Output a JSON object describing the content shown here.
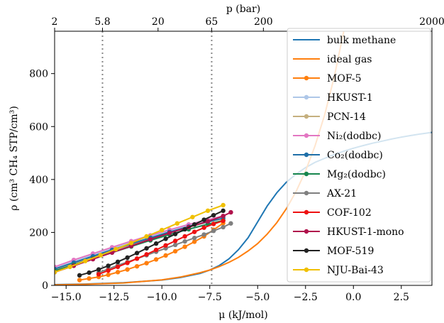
{
  "chart_data": {
    "type": "line",
    "xlabel": "μ (kJ/mol)",
    "ylabel": "ρ (cm³ CH₄ STP/cm³)",
    "top_xlabel": "p (bar)",
    "xlim": [
      -15.6,
      4.1
    ],
    "ylim": [
      0,
      960
    ],
    "xticks": [
      -15.0,
      -12.5,
      -10.0,
      -7.5,
      -5.0,
      -2.5,
      0.0,
      2.5
    ],
    "xtick_labels": [
      "−15.0",
      "−12.5",
      "−10.0",
      "−7.5",
      "−5.0",
      "−2.5",
      "0.0",
      "2.5"
    ],
    "yticks": [
      0,
      200,
      400,
      600,
      800
    ],
    "ytick_labels": [
      "0",
      "200",
      "400",
      "600",
      "800"
    ],
    "top_ticks": [
      {
        "label": "2",
        "mu": -15.6
      },
      {
        "label": "5.8",
        "mu": -13.1
      },
      {
        "label": "20",
        "mu": -10.2
      },
      {
        "label": "65",
        "mu": -7.4
      },
      {
        "label": "200",
        "mu": -4.7
      },
      {
        "label": "2000",
        "mu": 4.1
      }
    ],
    "vlines": [
      -13.1,
      -7.4
    ],
    "grid": false,
    "legend_position": "right",
    "series": [
      {
        "name": "bulk methane",
        "color": "#1f77b4",
        "marker": false,
        "x": [
          -15.6,
          -14,
          -12,
          -10,
          -9,
          -8,
          -7.5,
          -7,
          -6.5,
          -6,
          -5.5,
          -5,
          -4.5,
          -4,
          -3.5,
          -3,
          -2.5,
          -2,
          -1.5,
          -1,
          -0.5,
          0,
          0.5,
          1,
          1.5,
          2,
          2.5,
          3,
          3.5,
          4.1
        ],
        "y": [
          3,
          5,
          10,
          20,
          30,
          45,
          58,
          75,
          100,
          135,
          180,
          240,
          300,
          350,
          390,
          420,
          445,
          465,
          480,
          494,
          507,
          518,
          528,
          537,
          545,
          553,
          560,
          566,
          572,
          578
        ]
      },
      {
        "name": "ideal gas",
        "color": "#ff7f0e",
        "marker": false,
        "x": [
          -15.6,
          -14,
          -12,
          -10,
          -9,
          -8,
          -7.5,
          -7,
          -6.5,
          -6,
          -5.5,
          -5,
          -4.5,
          -4,
          -3.5,
          -3,
          -2.5,
          -2,
          -1.5,
          -1,
          -0.5,
          0
        ],
        "y": [
          2,
          4,
          9,
          21,
          32,
          48,
          58,
          71,
          87,
          106,
          130,
          158,
          194,
          237,
          290,
          354,
          432,
          528,
          645,
          788,
          962,
          1175
        ]
      },
      {
        "name": "MOF-5",
        "color": "#ff7f0e",
        "marker": true,
        "x": [
          -14.3,
          -13.8,
          -13.3,
          -12.8,
          -12.3,
          -11.8,
          -11.3,
          -10.8,
          -10.3,
          -9.8,
          -9.3,
          -8.8,
          -8.3,
          -7.8,
          -7.3,
          -6.8
        ],
        "y": [
          20,
          26,
          32,
          40,
          50,
          60,
          72,
          84,
          98,
          113,
          129,
          146,
          165,
          185,
          210,
          235
        ]
      },
      {
        "name": "HKUST-1",
        "color": "#aec7e8",
        "marker": true,
        "x": [
          -15.6,
          -14.6,
          -13.6,
          -12.6,
          -11.6,
          -10.6,
          -9.6,
          -8.6,
          -7.6,
          -6.8
        ],
        "y": [
          65,
          90,
          115,
          138,
          162,
          186,
          208,
          228,
          246,
          260
        ]
      },
      {
        "name": "PCN-14",
        "color": "#c5b07f",
        "marker": true,
        "x": [
          -15.6,
          -14.6,
          -13.6,
          -12.6,
          -11.6,
          -10.6,
          -9.6,
          -8.6,
          -7.6,
          -6.8
        ],
        "y": [
          60,
          83,
          106,
          130,
          154,
          178,
          201,
          221,
          239,
          252
        ]
      },
      {
        "name": "Ni₂(dodbc)",
        "color": "#e377c2",
        "marker": true,
        "x": [
          -15.6,
          -14.6,
          -13.6,
          -12.6,
          -11.6,
          -10.6,
          -9.6,
          -8.6,
          -7.6,
          -6.8
        ],
        "y": [
          70,
          96,
          120,
          144,
          167,
          189,
          210,
          230,
          248,
          262
        ]
      },
      {
        "name": "Co₂(dodbc)",
        "color": "#1f6fa8",
        "marker": true,
        "x": [
          -15.6,
          -14.6,
          -13.6,
          -12.6,
          -11.6,
          -10.6,
          -9.6,
          -8.6,
          -7.6,
          -6.8
        ],
        "y": [
          62,
          86,
          110,
          134,
          157,
          180,
          202,
          222,
          240,
          254
        ]
      },
      {
        "name": "Mg₂(dodbc)",
        "color": "#17864e",
        "marker": true,
        "x": [
          -15.6,
          -14.6,
          -13.6,
          -12.6,
          -11.6,
          -10.6,
          -9.6,
          -8.6,
          -7.6,
          -6.8
        ],
        "y": [
          55,
          78,
          101,
          124,
          147,
          170,
          192,
          212,
          231,
          245
        ]
      },
      {
        "name": "AX-21",
        "color": "#7f7f7f",
        "marker": true,
        "x": [
          -13.3,
          -12.8,
          -12.3,
          -11.8,
          -11.3,
          -10.8,
          -10.3,
          -9.8,
          -9.3,
          -8.8,
          -8.3,
          -7.8,
          -7.3,
          -6.8,
          -6.4
        ],
        "y": [
          48,
          62,
          76,
          88,
          101,
          114,
          127,
          140,
          153,
          166,
          179,
          192,
          206,
          220,
          234
        ]
      },
      {
        "name": "COF-102",
        "color": "#ee1111",
        "marker": true,
        "x": [
          -13.3,
          -12.8,
          -12.3,
          -11.8,
          -11.3,
          -10.8,
          -10.3,
          -9.8,
          -9.3,
          -8.8,
          -8.3,
          -7.8,
          -7.3,
          -6.8
        ],
        "y": [
          42,
          56,
          70,
          85,
          101,
          117,
          134,
          151,
          168,
          185,
          202,
          218,
          232,
          244
        ]
      },
      {
        "name": "HKUST-1-mono",
        "color": "#b0124c",
        "marker": true,
        "x": [
          -15.6,
          -14.6,
          -13.6,
          -12.6,
          -11.6,
          -10.6,
          -9.6,
          -8.6,
          -7.6,
          -6.8,
          -6.4
        ],
        "y": [
          50,
          74,
          99,
          124,
          149,
          174,
          198,
          220,
          242,
          262,
          276
        ]
      },
      {
        "name": "MOF-519",
        "color": "#222222",
        "marker": true,
        "x": [
          -14.3,
          -13.8,
          -13.3,
          -12.8,
          -12.3,
          -11.8,
          -11.3,
          -10.8,
          -10.3,
          -9.8,
          -9.3,
          -8.8,
          -8.3,
          -7.8,
          -7.3,
          -6.8
        ],
        "y": [
          38,
          48,
          60,
          74,
          89,
          105,
          122,
          140,
          158,
          176,
          194,
          212,
          230,
          248,
          265,
          282
        ]
      },
      {
        "name": "NJU-Bai-43",
        "color": "#f0c000",
        "marker": true,
        "x": [
          -15.6,
          -14.8,
          -14.0,
          -13.2,
          -12.4,
          -11.6,
          -10.8,
          -10.0,
          -9.2,
          -8.4,
          -7.6,
          -6.8
        ],
        "y": [
          50,
          70,
          92,
          114,
          137,
          160,
          185,
          209,
          234,
          258,
          282,
          303
        ]
      }
    ]
  }
}
